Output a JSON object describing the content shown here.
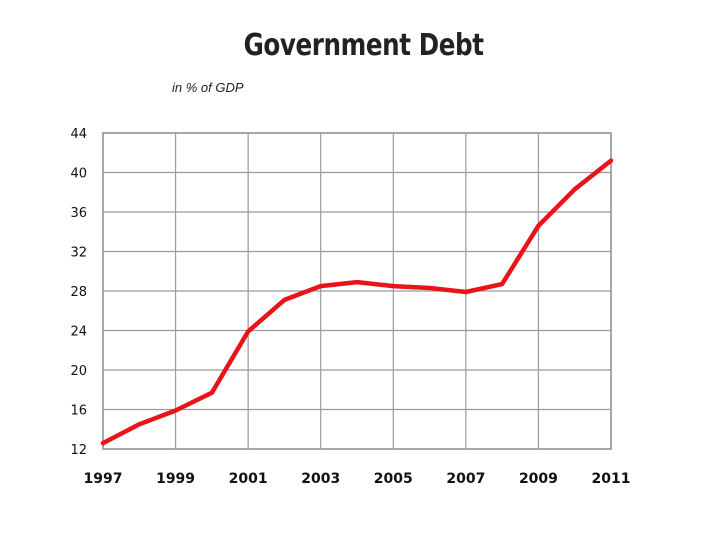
{
  "chart_data": {
    "type": "line",
    "title": "Government Debt",
    "subtitle": "in % of GDP",
    "xlabel": "",
    "ylabel": "",
    "xlim": [
      1997,
      2011
    ],
    "ylim": [
      12,
      44
    ],
    "yticks": [
      12,
      16,
      20,
      24,
      28,
      32,
      36,
      40,
      44
    ],
    "xticks": [
      1997,
      1999,
      2001,
      2003,
      2005,
      2007,
      2009,
      2011
    ],
    "grid": true,
    "line_color": "#e8141a",
    "x": [
      1997,
      1998,
      1999,
      2000,
      2001,
      2002,
      2003,
      2004,
      2005,
      2006,
      2007,
      2008,
      2009,
      2010,
      2011
    ],
    "values": [
      12.6,
      14.5,
      15.9,
      17.7,
      23.9,
      27.1,
      28.5,
      28.9,
      28.5,
      28.3,
      27.9,
      28.7,
      34.6,
      38.3,
      41.2
    ]
  }
}
